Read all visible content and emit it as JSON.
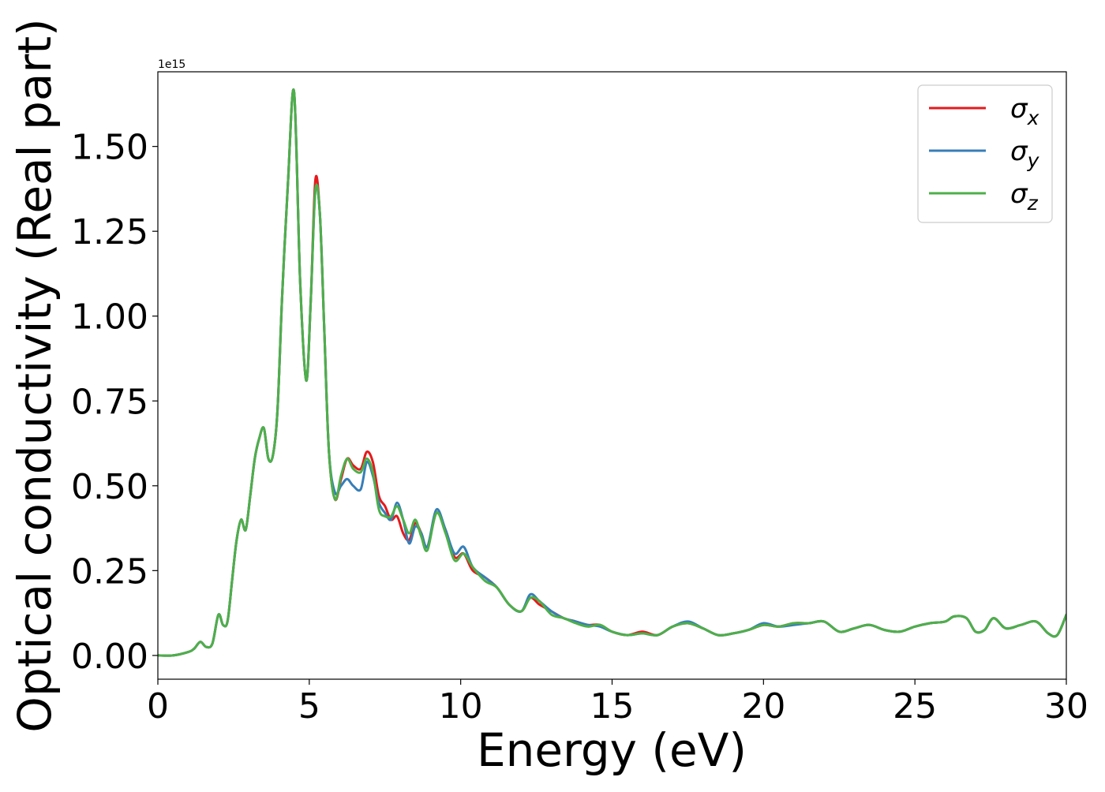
{
  "chart_data": {
    "type": "line",
    "xlabel": "Energy (eV)",
    "ylabel": "Optical conductivity (Real part)",
    "offset_text": "1e15",
    "xlim": [
      0,
      30
    ],
    "ylim": [
      -0.07,
      1.72
    ],
    "x_ticks": [
      0,
      5,
      10,
      15,
      20,
      25,
      30
    ],
    "x_tick_labels": [
      "0",
      "5",
      "10",
      "15",
      "20",
      "25",
      "30"
    ],
    "y_ticks": [
      0.0,
      0.25,
      0.5,
      0.75,
      1.0,
      1.25,
      1.5
    ],
    "y_tick_labels": [
      "0.00",
      "0.25",
      "0.50",
      "0.75",
      "1.00",
      "1.25",
      "1.50"
    ],
    "grid": false,
    "legend_position": "top-right",
    "x": [
      0,
      0.5,
      1.0,
      1.2,
      1.4,
      1.6,
      1.8,
      2.0,
      2.15,
      2.3,
      2.45,
      2.6,
      2.75,
      2.9,
      3.05,
      3.2,
      3.35,
      3.5,
      3.65,
      3.8,
      3.95,
      4.1,
      4.3,
      4.5,
      4.7,
      4.9,
      5.05,
      5.2,
      5.35,
      5.5,
      5.65,
      5.85,
      6.05,
      6.25,
      6.45,
      6.7,
      6.9,
      7.1,
      7.3,
      7.5,
      7.7,
      7.9,
      8.1,
      8.3,
      8.5,
      8.7,
      8.9,
      9.2,
      9.5,
      9.8,
      10.1,
      10.4,
      10.8,
      11.2,
      11.6,
      12.0,
      12.3,
      12.6,
      13.0,
      13.4,
      13.8,
      14.2,
      14.6,
      15.0,
      15.5,
      16.0,
      16.5,
      17.0,
      17.5,
      18.0,
      18.5,
      19.0,
      19.5,
      20.0,
      20.5,
      21.0,
      21.5,
      22.0,
      22.5,
      23.0,
      23.5,
      24.0,
      24.5,
      25.0,
      25.5,
      26.0,
      26.3,
      26.7,
      27.0,
      27.3,
      27.6,
      28.0,
      28.5,
      29.0,
      29.4,
      29.7,
      30.0
    ],
    "series": [
      {
        "name": "σx",
        "sub": "x",
        "color": "#e41a1c",
        "values": [
          0,
          0,
          0.01,
          0.02,
          0.04,
          0.025,
          0.035,
          0.12,
          0.09,
          0.1,
          0.22,
          0.34,
          0.4,
          0.37,
          0.47,
          0.58,
          0.64,
          0.67,
          0.58,
          0.59,
          0.72,
          1.05,
          1.4,
          1.66,
          1.1,
          0.81,
          1.05,
          1.4,
          1.3,
          0.95,
          0.6,
          0.46,
          0.52,
          0.58,
          0.56,
          0.55,
          0.6,
          0.57,
          0.47,
          0.44,
          0.4,
          0.41,
          0.36,
          0.34,
          0.39,
          0.36,
          0.32,
          0.42,
          0.37,
          0.29,
          0.3,
          0.25,
          0.23,
          0.2,
          0.15,
          0.13,
          0.17,
          0.15,
          0.13,
          0.11,
          0.1,
          0.09,
          0.09,
          0.07,
          0.06,
          0.07,
          0.06,
          0.085,
          0.095,
          0.08,
          0.06,
          0.065,
          0.075,
          0.09,
          0.085,
          0.095,
          0.095,
          0.1,
          0.07,
          0.08,
          0.09,
          0.075,
          0.07,
          0.085,
          0.095,
          0.1,
          0.115,
          0.11,
          0.07,
          0.075,
          0.11,
          0.08,
          0.09,
          0.1,
          0.065,
          0.06,
          0.12
        ]
      },
      {
        "name": "σy",
        "sub": "y",
        "color": "#377eb8",
        "values": [
          0,
          0,
          0.01,
          0.02,
          0.04,
          0.025,
          0.035,
          0.12,
          0.09,
          0.1,
          0.22,
          0.34,
          0.4,
          0.37,
          0.47,
          0.58,
          0.64,
          0.67,
          0.58,
          0.59,
          0.72,
          1.05,
          1.4,
          1.66,
          1.1,
          0.81,
          1.05,
          1.37,
          1.3,
          0.95,
          0.6,
          0.48,
          0.5,
          0.52,
          0.5,
          0.49,
          0.57,
          0.53,
          0.45,
          0.42,
          0.4,
          0.45,
          0.4,
          0.33,
          0.38,
          0.36,
          0.32,
          0.43,
          0.37,
          0.3,
          0.32,
          0.26,
          0.23,
          0.2,
          0.15,
          0.13,
          0.18,
          0.16,
          0.13,
          0.11,
          0.1,
          0.09,
          0.085,
          0.07,
          0.06,
          0.065,
          0.06,
          0.085,
          0.1,
          0.08,
          0.06,
          0.065,
          0.075,
          0.095,
          0.085,
          0.09,
          0.095,
          0.1,
          0.07,
          0.08,
          0.09,
          0.075,
          0.07,
          0.085,
          0.095,
          0.1,
          0.115,
          0.11,
          0.07,
          0.075,
          0.11,
          0.08,
          0.09,
          0.1,
          0.065,
          0.06,
          0.12
        ]
      },
      {
        "name": "σz",
        "sub": "z",
        "color": "#4daf4a",
        "values": [
          0,
          0,
          0.01,
          0.02,
          0.04,
          0.025,
          0.035,
          0.12,
          0.09,
          0.1,
          0.22,
          0.34,
          0.4,
          0.37,
          0.47,
          0.58,
          0.64,
          0.67,
          0.58,
          0.59,
          0.72,
          1.05,
          1.4,
          1.66,
          1.1,
          0.81,
          1.05,
          1.37,
          1.3,
          0.95,
          0.6,
          0.46,
          0.53,
          0.58,
          0.55,
          0.54,
          0.58,
          0.54,
          0.43,
          0.41,
          0.41,
          0.44,
          0.4,
          0.36,
          0.4,
          0.35,
          0.31,
          0.42,
          0.36,
          0.28,
          0.3,
          0.26,
          0.22,
          0.2,
          0.15,
          0.13,
          0.17,
          0.16,
          0.12,
          0.11,
          0.095,
          0.085,
          0.09,
          0.07,
          0.06,
          0.065,
          0.06,
          0.085,
          0.095,
          0.08,
          0.06,
          0.065,
          0.075,
          0.09,
          0.085,
          0.095,
          0.095,
          0.1,
          0.07,
          0.08,
          0.09,
          0.075,
          0.07,
          0.085,
          0.095,
          0.1,
          0.115,
          0.11,
          0.07,
          0.075,
          0.11,
          0.08,
          0.09,
          0.1,
          0.065,
          0.06,
          0.12
        ]
      }
    ]
  }
}
